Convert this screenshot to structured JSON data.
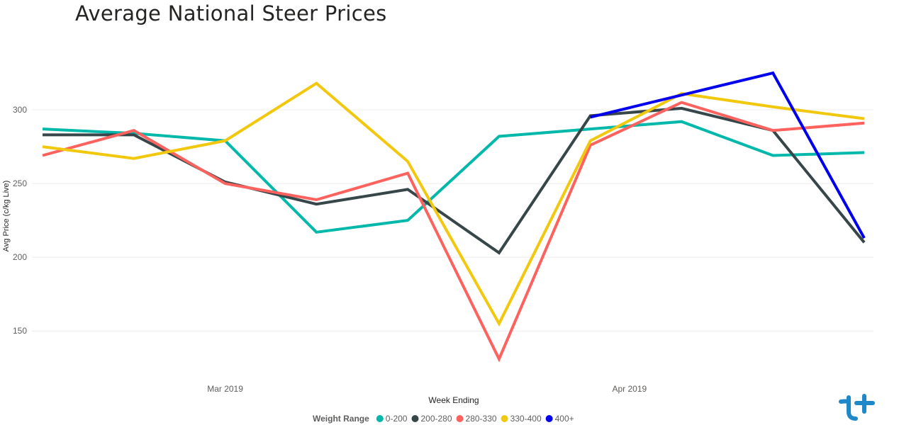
{
  "chart_data": {
    "type": "line",
    "title": "Average National Steer Prices",
    "xlabel": "Week Ending",
    "ylabel": "Avg Price (c/kg Live)",
    "ylim": [
      128,
      325
    ],
    "yticks": [
      150,
      200,
      250,
      300
    ],
    "x_ticks": [
      {
        "label": "Mar 2019",
        "x": "2019-03-01"
      },
      {
        "label": "Apr 2019",
        "x": "2019-04-01"
      }
    ],
    "x": [
      "2019-02-15",
      "2019-02-22",
      "2019-03-01",
      "2019-03-08",
      "2019-03-15",
      "2019-03-22",
      "2019-03-29",
      "2019-04-05",
      "2019-04-12",
      "2019-04-19"
    ],
    "grid": true,
    "legend": {
      "title": "Weight Range",
      "position": "bottom-center"
    },
    "series": [
      {
        "name": "0-200",
        "color": "#01B8AA",
        "values": [
          287,
          284,
          279,
          217,
          225,
          282,
          287,
          292,
          269,
          271
        ]
      },
      {
        "name": "200-280",
        "color": "#374649",
        "values": [
          283,
          283,
          251,
          236,
          246,
          203,
          296,
          301,
          286,
          210
        ]
      },
      {
        "name": "280-330",
        "color": "#FD625E",
        "values": [
          269,
          286,
          250,
          239,
          257,
          131,
          276,
          305,
          286,
          291
        ]
      },
      {
        "name": "330-400",
        "color": "#F2C80F",
        "values": [
          275,
          267,
          279,
          318,
          265,
          155,
          279,
          311,
          302,
          294
        ]
      },
      {
        "name": "400+",
        "color": "#0000EE",
        "values": [
          null,
          null,
          null,
          null,
          null,
          null,
          295,
          310,
          325,
          213
        ]
      }
    ]
  },
  "logo": {
    "name": "tplus-logo",
    "color": "#1E88C8"
  }
}
